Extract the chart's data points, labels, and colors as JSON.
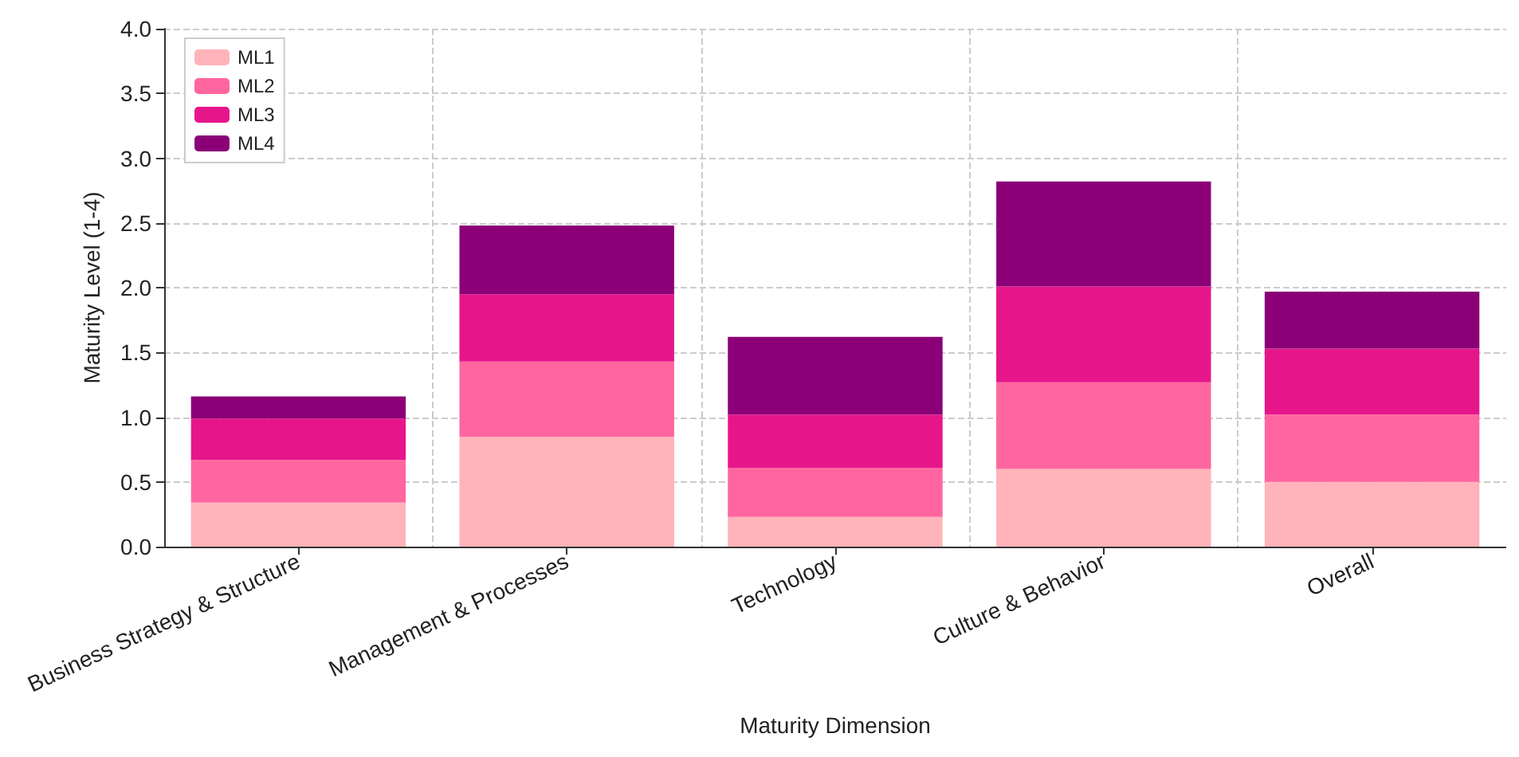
{
  "chart_data": {
    "type": "bar",
    "stacked": true,
    "xlabel": "Maturity Dimension",
    "ylabel": "Maturity Level (1-4)",
    "categories": [
      "Business Strategy & Structure",
      "Management & Processes",
      "Technology",
      "Culture & Behavior",
      "Overall"
    ],
    "series": [
      {
        "name": "ML1",
        "color": "#ffb3ba",
        "values": [
          0.34,
          0.85,
          0.23,
          0.6,
          0.5
        ]
      },
      {
        "name": "ML2",
        "color": "#ff66a0",
        "values": [
          0.33,
          0.58,
          0.38,
          0.67,
          0.52
        ]
      },
      {
        "name": "ML3",
        "color": "#e6168a",
        "values": [
          0.32,
          0.52,
          0.41,
          0.74,
          0.51
        ]
      },
      {
        "name": "ML4",
        "color": "#8b0077",
        "values": [
          0.17,
          0.53,
          0.6,
          0.81,
          0.44
        ]
      }
    ],
    "ylim": [
      0,
      4
    ],
    "yticks": [
      {
        "value": 0,
        "label": "0.0"
      },
      0.5,
      {
        "value": 1,
        "label": "1.0"
      },
      1.5,
      {
        "value": 2,
        "label": "2.0"
      },
      2.5,
      {
        "value": 3,
        "label": "3.0"
      },
      3.5,
      {
        "value": 4,
        "label": "4.0"
      }
    ],
    "grid": true,
    "legend": "top left"
  }
}
